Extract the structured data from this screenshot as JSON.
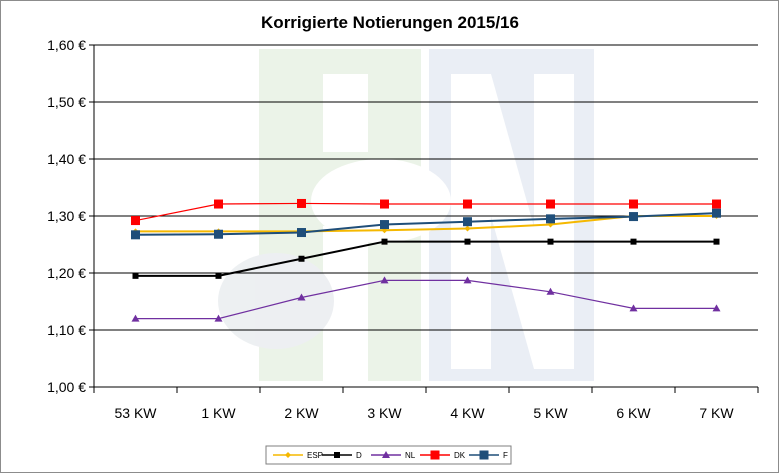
{
  "chart_data": {
    "type": "line",
    "title": "Korrigierte Notierungen 2015/16",
    "xlabel": "",
    "ylabel": "",
    "categories": [
      "53 KW",
      "1 KW",
      "2 KW",
      "3 KW",
      "4 KW",
      "5 KW",
      "6 KW",
      "7 KW"
    ],
    "ylim": [
      1.0,
      1.6
    ],
    "yticks": [
      1.0,
      1.1,
      1.2,
      1.3,
      1.4,
      1.5,
      1.6
    ],
    "ytick_labels": [
      "1,00 €",
      "1,10 €",
      "1,20 €",
      "1,30 €",
      "1,40 €",
      "1,50 €",
      "1,60 €"
    ],
    "grid": "horizontal",
    "legend_position": "bottom",
    "series": [
      {
        "name": "ESP",
        "color": "#f5b800",
        "marker": "diamond",
        "values": [
          1.273,
          1.273,
          1.273,
          1.275,
          1.278,
          1.285,
          1.3,
          1.3
        ]
      },
      {
        "name": "D",
        "color": "#000000",
        "marker": "square-small",
        "values": [
          1.195,
          1.195,
          1.225,
          1.255,
          1.255,
          1.255,
          1.255,
          1.255
        ]
      },
      {
        "name": "NL",
        "color": "#7030a0",
        "marker": "triangle",
        "values": [
          1.12,
          1.12,
          1.157,
          1.187,
          1.187,
          1.167,
          1.138,
          1.138
        ]
      },
      {
        "name": "DK",
        "color": "#ff0000",
        "marker": "square",
        "values": [
          1.292,
          1.321,
          1.322,
          1.321,
          1.321,
          1.321,
          1.321,
          1.321
        ]
      },
      {
        "name": "F",
        "color": "#1f4e79",
        "marker": "square",
        "values": [
          1.267,
          1.268,
          1.271,
          1.285,
          1.29,
          1.295,
          1.299,
          1.305
        ]
      }
    ]
  }
}
